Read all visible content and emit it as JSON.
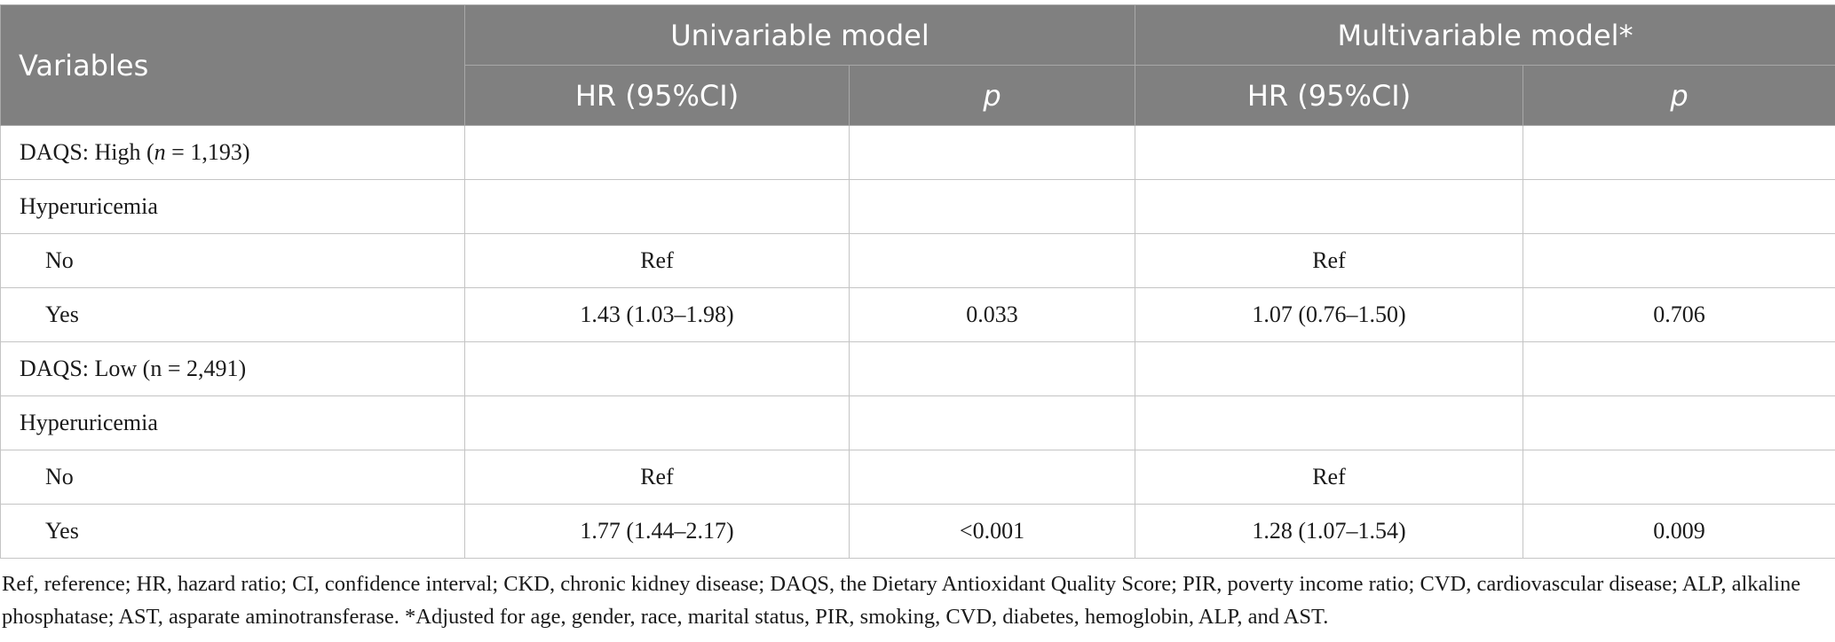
{
  "header": {
    "variables": "Variables",
    "univariable": "Univariable model",
    "multivariable": "Multivariable model*",
    "hr_ci": "HR (95%CI)",
    "p": "p"
  },
  "rows": [
    {
      "label_prefix": "DAQS: High (",
      "label_italic": "n",
      "label_suffix": " = 1,193)",
      "uni_hr": "",
      "uni_p": "",
      "multi_hr": "",
      "multi_p": ""
    },
    {
      "label": "Hyperuricemia",
      "uni_hr": "",
      "uni_p": "",
      "multi_hr": "",
      "multi_p": ""
    },
    {
      "label": "No",
      "uni_hr": "Ref",
      "uni_p": "",
      "multi_hr": "Ref",
      "multi_p": ""
    },
    {
      "label": "Yes",
      "uni_hr": "1.43 (1.03–1.98)",
      "uni_p": "0.033",
      "multi_hr": "1.07 (0.76–1.50)",
      "multi_p": "0.706"
    },
    {
      "label": "DAQS: Low (n = 2,491)",
      "uni_hr": "",
      "uni_p": "",
      "multi_hr": "",
      "multi_p": ""
    },
    {
      "label": "Hyperuricemia",
      "uni_hr": "",
      "uni_p": "",
      "multi_hr": "",
      "multi_p": ""
    },
    {
      "label": "No",
      "uni_hr": "Ref",
      "uni_p": "",
      "multi_hr": "Ref",
      "multi_p": ""
    },
    {
      "label": "Yes",
      "uni_hr": "1.77 (1.44–2.17)",
      "uni_p": "<0.001",
      "multi_hr": "1.28 (1.07–1.54)",
      "multi_p": "0.009"
    }
  ],
  "footnote": "Ref, reference; HR, hazard ratio; CI, confidence interval; CKD, chronic kidney disease; DAQS, the Dietary Antioxidant Quality Score; PIR, poverty income ratio; CVD, cardiovascular disease; ALP, alkaline phosphatase; AST, asparate aminotransferase. *Adjusted for age, gender, race, marital status, PIR, smoking, CVD, diabetes, hemoglobin, ALP, and AST."
}
